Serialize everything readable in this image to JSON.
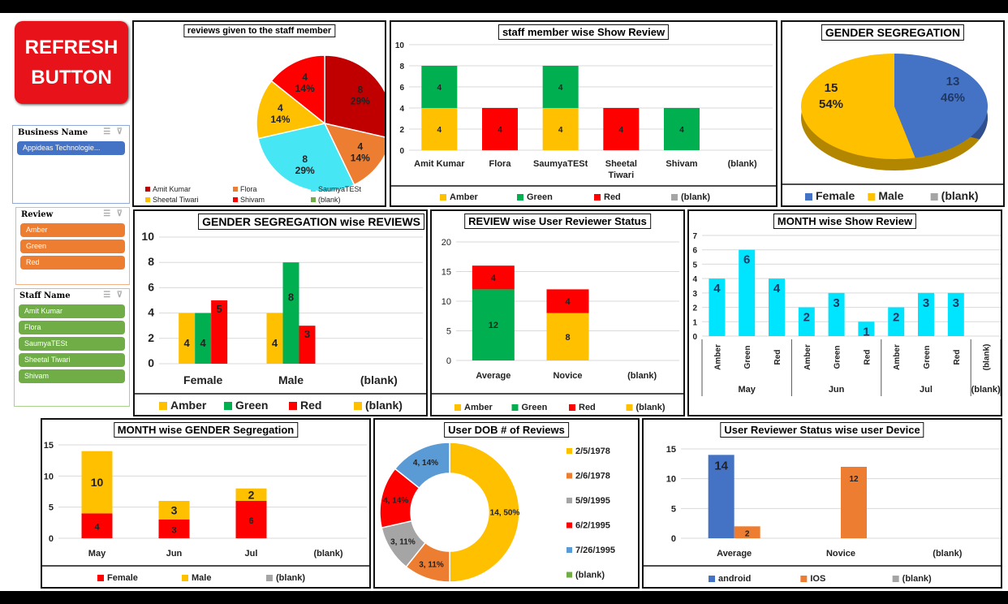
{
  "refresh_button": {
    "line1": "REFRESH",
    "line2": "BUTTON"
  },
  "slicers": {
    "business": {
      "title": "Business Name",
      "items": [
        "Appideas Technologie..."
      ],
      "color": "#4472c4",
      "border": "#8eaadb"
    },
    "review": {
      "title": "Review",
      "items": [
        "Amber",
        "Green",
        "Red"
      ],
      "color": "#ed7d31",
      "border": "#f4b183"
    },
    "staff": {
      "title": "Staff Name",
      "items": [
        "Amit Kumar",
        "Flora",
        "SaumyaTESt",
        "Sheetal Tiwari",
        "Shivam"
      ],
      "color": "#70ad47",
      "border": "#a9d18e"
    }
  },
  "colors": {
    "amber": "#ffc000",
    "green": "#00b050",
    "red": "#ff0000",
    "gray": "#a5a5a5",
    "cyan": "#00e5ff",
    "blue": "#4472c4",
    "orange": "#ed7d31",
    "darkred": "#c00000"
  },
  "chart_data": [
    {
      "id": "reviews_staff_pie",
      "type": "pie",
      "title": "reviews given to the staff member",
      "labels": [
        "Amit Kumar",
        "Flora",
        "SaumyaTESt",
        "Sheetal Tiwari",
        "Shivam",
        "(blank)"
      ],
      "values": [
        8,
        4,
        8,
        4,
        4,
        0
      ],
      "data_labels": [
        "8\n29%",
        "4\n14%",
        "8\n29%",
        "4\n14%",
        "4\n14%",
        ""
      ],
      "colors": [
        "#c00000",
        "#ed7d31",
        "#47e6f5",
        "#ffc000",
        "#ff0000",
        "#70ad47"
      ],
      "legend": "bottom"
    },
    {
      "id": "staff_review_bar",
      "type": "bar",
      "stacked": true,
      "title": "staff member wise Show Review",
      "categories": [
        "Amit Kumar",
        "Flora",
        "SaumyaTESt",
        "Sheetal Tiwari",
        "Shivam",
        "(blank)"
      ],
      "series": [
        {
          "name": "Amber",
          "values": [
            4,
            0,
            4,
            0,
            0,
            0
          ]
        },
        {
          "name": "Green",
          "values": [
            4,
            0,
            4,
            0,
            4,
            0
          ]
        },
        {
          "name": "Red",
          "values": [
            0,
            4,
            0,
            4,
            0,
            0
          ]
        },
        {
          "name": "(blank)",
          "values": [
            0,
            0,
            0,
            0,
            0,
            0
          ]
        }
      ],
      "ylim": [
        0,
        10
      ],
      "yticks": [
        0,
        2,
        4,
        6,
        8,
        10
      ],
      "legend": "bottom"
    },
    {
      "id": "gender_pie",
      "type": "pie",
      "title": "GENDER SEGREGATION",
      "labels": [
        "Female",
        "Male",
        "(blank)"
      ],
      "values": [
        13,
        15,
        0
      ],
      "data_labels": [
        "13\n46%",
        "15\n54%",
        ""
      ],
      "colors": [
        "#4472c4",
        "#ffc000",
        "#a5a5a5"
      ],
      "legend": "bottom"
    },
    {
      "id": "gender_reviews_bar",
      "type": "bar",
      "title": "GENDER SEGREGATION wise REVIEWS",
      "categories": [
        "Female",
        "Male",
        "(blank)"
      ],
      "series": [
        {
          "name": "Amber",
          "values": [
            4,
            4,
            0
          ]
        },
        {
          "name": "Green",
          "values": [
            4,
            8,
            0
          ]
        },
        {
          "name": "Red",
          "values": [
            5,
            3,
            0
          ]
        },
        {
          "name": "(blank)",
          "values": [
            0,
            0,
            0
          ]
        }
      ],
      "ylim": [
        0,
        10
      ],
      "yticks": [
        0,
        2,
        4,
        6,
        8,
        10
      ],
      "legend": "bottom"
    },
    {
      "id": "review_status_bar",
      "type": "bar",
      "stacked": true,
      "title": "REVIEW wise User Reviewer Status",
      "categories": [
        "Average",
        "Novice",
        "(blank)"
      ],
      "series": [
        {
          "name": "Amber",
          "values": [
            0,
            8,
            0
          ]
        },
        {
          "name": "Green",
          "values": [
            12,
            0,
            0
          ]
        },
        {
          "name": "Red",
          "values": [
            4,
            4,
            0
          ]
        },
        {
          "name": "(blank)",
          "values": [
            0,
            0,
            0
          ]
        }
      ],
      "ylim": [
        0,
        20
      ],
      "yticks": [
        0,
        5,
        10,
        15,
        20
      ],
      "legend": "bottom"
    },
    {
      "id": "month_review_bar",
      "type": "bar",
      "title": "MONTH wise Show Review",
      "groups": [
        "May",
        "Jun",
        "Jul",
        "(blank)"
      ],
      "categories": [
        "Amber",
        "Green",
        "Red",
        "Amber",
        "Green",
        "Red",
        "Amber",
        "Green",
        "Red",
        "(blank)"
      ],
      "values": [
        4,
        6,
        4,
        2,
        3,
        1,
        2,
        3,
        3,
        0
      ],
      "ylim": [
        0,
        7
      ],
      "yticks": [
        0,
        1,
        2,
        3,
        4,
        5,
        6,
        7
      ]
    },
    {
      "id": "month_gender_bar",
      "type": "bar",
      "stacked": true,
      "title": "MONTH wise GENDER Segregation",
      "categories": [
        "May",
        "Jun",
        "Jul",
        "(blank)"
      ],
      "series": [
        {
          "name": "Female",
          "values": [
            4,
            3,
            6,
            0
          ]
        },
        {
          "name": "Male",
          "values": [
            10,
            3,
            2,
            0
          ]
        },
        {
          "name": "(blank)",
          "values": [
            0,
            0,
            0,
            0
          ]
        }
      ],
      "ylim": [
        0,
        15
      ],
      "yticks": [
        0,
        5,
        10,
        15
      ],
      "legend": "bottom"
    },
    {
      "id": "dob_donut",
      "type": "pie",
      "donut": true,
      "title": "User DOB # of Reviews",
      "labels": [
        "2/5/1978",
        "2/6/1978",
        "5/9/1995",
        "6/2/1995",
        "7/26/1995",
        "(blank)"
      ],
      "values": [
        14,
        3,
        3,
        4,
        4,
        0
      ],
      "data_labels": [
        "14, 50%",
        "3, 11%",
        "3, 11%",
        "4, 14%",
        "4, 14%",
        ""
      ],
      "colors": [
        "#ffc000",
        "#ed7d31",
        "#a5a5a5",
        "#ff0000",
        "#5b9bd5",
        "#70ad47"
      ],
      "legend": "right"
    },
    {
      "id": "status_device_bar",
      "type": "bar",
      "title": "User Reviewer Status wise user Device",
      "categories": [
        "Average",
        "Novice",
        "(blank)"
      ],
      "series": [
        {
          "name": "android",
          "values": [
            14,
            0,
            0
          ]
        },
        {
          "name": "IOS",
          "values": [
            2,
            12,
            0
          ]
        },
        {
          "name": "(blank)",
          "values": [
            0,
            0,
            0
          ]
        }
      ],
      "ylim": [
        0,
        15
      ],
      "yticks": [
        0,
        5,
        10,
        15
      ],
      "legend": "bottom"
    }
  ]
}
